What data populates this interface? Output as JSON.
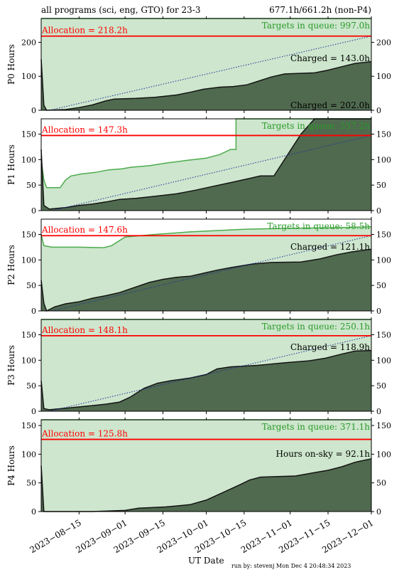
{
  "header": {
    "left": "all programs (sci, eng, GTO) for 23-3",
    "right": "677.1h/661.2h (non-P4)"
  },
  "footer": {
    "xlabel": "UT Date",
    "run_by": "run by: stevenj Mon Dec 4 20:48:34 2023"
  },
  "colors": {
    "allocation": "#ff0000",
    "queue_fill": "#cde6cd",
    "queue_line": "#4daa4d",
    "charged_fill": "#506a4f",
    "charged_line": "#141414",
    "pace_line": "#1f2f9a"
  },
  "chart_data": [
    {
      "type": "area",
      "ylabel": "P0 Hours",
      "ylim": [
        0,
        270
      ],
      "yticks": [
        0,
        100,
        200
      ],
      "allocation": 218.2,
      "allocation_label": "Allocation = 218.2h",
      "queue_label": "Targets in queue: 997.0h",
      "charged_label": "Charged = 143.0h",
      "extra_label": "Charged = 202.0h",
      "pace": [
        [
          "2023-08-04",
          0
        ],
        [
          "2023-12-01",
          218.2
        ]
      ],
      "queue": [
        [
          "2023-08-01",
          270
        ],
        [
          "2023-12-01",
          270
        ]
      ],
      "charged": [
        [
          "2023-08-01",
          150
        ],
        [
          "2023-08-02",
          15
        ],
        [
          "2023-08-03",
          0
        ],
        [
          "2023-08-10",
          2
        ],
        [
          "2023-08-15",
          8
        ],
        [
          "2023-08-20",
          16
        ],
        [
          "2023-08-25",
          28
        ],
        [
          "2023-08-28",
          33
        ],
        [
          "2023-09-05",
          35
        ],
        [
          "2023-09-12",
          38
        ],
        [
          "2023-09-20",
          45
        ],
        [
          "2023-09-25",
          53
        ],
        [
          "2023-09-30",
          62
        ],
        [
          "2023-10-06",
          68
        ],
        [
          "2023-10-11",
          70
        ],
        [
          "2023-10-16",
          75
        ],
        [
          "2023-10-20",
          85
        ],
        [
          "2023-10-25",
          98
        ],
        [
          "2023-10-30",
          107
        ],
        [
          "2023-11-10",
          110
        ],
        [
          "2023-11-15",
          118
        ],
        [
          "2023-11-20",
          128
        ],
        [
          "2023-11-25",
          138
        ],
        [
          "2023-12-01",
          143
        ]
      ]
    },
    {
      "type": "area",
      "ylabel": "P1 Hours",
      "ylim": [
        0,
        180
      ],
      "yticks": [
        0,
        50,
        100,
        150
      ],
      "allocation": 147.3,
      "allocation_label": "Allocation = 147.3h",
      "queue_label": "Targets in queue: 557.2h",
      "charged_label": "",
      "extra_label": "",
      "pace": [
        [
          "2023-08-05",
          0
        ],
        [
          "2023-12-01",
          147.3
        ]
      ],
      "queue": [
        [
          "2023-08-01",
          100
        ],
        [
          "2023-08-02",
          60
        ],
        [
          "2023-08-03",
          45
        ],
        [
          "2023-08-08",
          45
        ],
        [
          "2023-08-10",
          60
        ],
        [
          "2023-08-12",
          68
        ],
        [
          "2023-08-16",
          72
        ],
        [
          "2023-08-21",
          75
        ],
        [
          "2023-08-26",
          80
        ],
        [
          "2023-08-31",
          82
        ],
        [
          "2023-09-03",
          85
        ],
        [
          "2023-09-10",
          88
        ],
        [
          "2023-09-16",
          93
        ],
        [
          "2023-09-23",
          98
        ],
        [
          "2023-10-01",
          103
        ],
        [
          "2023-10-06",
          110
        ],
        [
          "2023-10-10",
          120
        ],
        [
          "2023-10-12",
          120
        ],
        [
          "2023-10-12",
          180
        ],
        [
          "2023-12-01",
          180
        ]
      ],
      "charged": [
        [
          "2023-08-01",
          120
        ],
        [
          "2023-08-02",
          10
        ],
        [
          "2023-08-04",
          3
        ],
        [
          "2023-08-10",
          6
        ],
        [
          "2023-08-15",
          10
        ],
        [
          "2023-08-20",
          13
        ],
        [
          "2023-08-25",
          17
        ],
        [
          "2023-08-30",
          22
        ],
        [
          "2023-09-05",
          24
        ],
        [
          "2023-09-12",
          28
        ],
        [
          "2023-09-20",
          33
        ],
        [
          "2023-09-27",
          40
        ],
        [
          "2023-10-03",
          47
        ],
        [
          "2023-10-10",
          55
        ],
        [
          "2023-10-16",
          62
        ],
        [
          "2023-10-21",
          68
        ],
        [
          "2023-10-26",
          68
        ],
        [
          "2023-11-05",
          150
        ],
        [
          "2023-11-10",
          180
        ],
        [
          "2023-12-01",
          180
        ]
      ]
    },
    {
      "type": "area",
      "ylabel": "P2 Hours",
      "ylim": [
        0,
        180
      ],
      "yticks": [
        0,
        50,
        100,
        150
      ],
      "allocation": 147.6,
      "allocation_label": "Allocation = 147.6h",
      "queue_label": "Targets in queue: 58.5h",
      "charged_label": "Charged = 121.1h",
      "extra_label": "",
      "pace": [
        [
          "2023-08-05",
          0
        ],
        [
          "2023-12-01",
          147.6
        ]
      ],
      "queue": [
        [
          "2023-08-01",
          150
        ],
        [
          "2023-08-02",
          128
        ],
        [
          "2023-08-05",
          125
        ],
        [
          "2023-08-15",
          125
        ],
        [
          "2023-08-24",
          124
        ],
        [
          "2023-08-27",
          128
        ],
        [
          "2023-09-01",
          145
        ],
        [
          "2023-09-12",
          150
        ],
        [
          "2023-09-25",
          155
        ],
        [
          "2023-10-15",
          160
        ],
        [
          "2023-10-31",
          162
        ],
        [
          "2023-11-15",
          163
        ],
        [
          "2023-12-01",
          165
        ]
      ],
      "charged": [
        [
          "2023-08-01",
          60
        ],
        [
          "2023-08-02",
          15
        ],
        [
          "2023-08-03",
          0
        ],
        [
          "2023-08-06",
          8
        ],
        [
          "2023-08-10",
          14
        ],
        [
          "2023-08-15",
          18
        ],
        [
          "2023-08-20",
          25
        ],
        [
          "2023-08-25",
          30
        ],
        [
          "2023-08-30",
          36
        ],
        [
          "2023-09-05",
          47
        ],
        [
          "2023-09-10",
          56
        ],
        [
          "2023-09-15",
          62
        ],
        [
          "2023-09-20",
          66
        ],
        [
          "2023-09-25",
          68
        ],
        [
          "2023-09-30",
          74
        ],
        [
          "2023-10-05",
          80
        ],
        [
          "2023-10-10",
          85
        ],
        [
          "2023-10-18",
          92
        ],
        [
          "2023-10-25",
          95
        ],
        [
          "2023-11-05",
          96
        ],
        [
          "2023-11-12",
          102
        ],
        [
          "2023-11-18",
          110
        ],
        [
          "2023-11-24",
          116
        ],
        [
          "2023-12-01",
          121
        ]
      ]
    },
    {
      "type": "area",
      "ylabel": "P3 Hours",
      "ylim": [
        0,
        180
      ],
      "yticks": [
        0,
        50,
        100,
        150
      ],
      "allocation": 148.1,
      "allocation_label": "Allocation = 148.1h",
      "queue_label": "Targets in queue: 250.1h",
      "charged_label": "Charged = 118.9h",
      "extra_label": "",
      "pace": [
        [
          "2023-08-04",
          0
        ],
        [
          "2023-12-01",
          148.1
        ]
      ],
      "queue": [
        [
          "2023-08-01",
          180
        ],
        [
          "2023-12-01",
          180
        ]
      ],
      "charged": [
        [
          "2023-08-01",
          60
        ],
        [
          "2023-08-02",
          5
        ],
        [
          "2023-08-04",
          3
        ],
        [
          "2023-08-10",
          6
        ],
        [
          "2023-08-18",
          10
        ],
        [
          "2023-08-25",
          14
        ],
        [
          "2023-08-30",
          18
        ],
        [
          "2023-09-03",
          28
        ],
        [
          "2023-09-08",
          45
        ],
        [
          "2023-09-13",
          55
        ],
        [
          "2023-09-18",
          60
        ],
        [
          "2023-09-25",
          65
        ],
        [
          "2023-10-01",
          72
        ],
        [
          "2023-10-05",
          83
        ],
        [
          "2023-10-10",
          87
        ],
        [
          "2023-10-20",
          90
        ],
        [
          "2023-10-30",
          95
        ],
        [
          "2023-11-08",
          99
        ],
        [
          "2023-11-14",
          104
        ],
        [
          "2023-11-20",
          112
        ],
        [
          "2023-11-25",
          118
        ],
        [
          "2023-12-01",
          119
        ]
      ]
    },
    {
      "type": "area",
      "ylabel": "P4 Hours",
      "ylim": [
        0,
        160
      ],
      "yticks": [
        0,
        50,
        100,
        150
      ],
      "allocation": 125.8,
      "allocation_label": "Allocation = 125.8h",
      "queue_label": "Targets in queue: 371.1h",
      "charged_label": "Hours on-sky = 92.1h",
      "extra_label": "",
      "pace": [],
      "queue": [
        [
          "2023-08-01",
          160
        ],
        [
          "2023-12-01",
          160
        ]
      ],
      "charged": [
        [
          "2023-08-01",
          80
        ],
        [
          "2023-08-02",
          0
        ],
        [
          "2023-08-20",
          0
        ],
        [
          "2023-09-01",
          2
        ],
        [
          "2023-09-06",
          6
        ],
        [
          "2023-09-16",
          8
        ],
        [
          "2023-09-25",
          12
        ],
        [
          "2023-10-01",
          20
        ],
        [
          "2023-10-08",
          35
        ],
        [
          "2023-10-14",
          48
        ],
        [
          "2023-10-17",
          55
        ],
        [
          "2023-10-21",
          60
        ],
        [
          "2023-11-03",
          62
        ],
        [
          "2023-11-10",
          68
        ],
        [
          "2023-11-15",
          72
        ],
        [
          "2023-11-20",
          78
        ],
        [
          "2023-11-25",
          86
        ],
        [
          "2023-12-01",
          92
        ]
      ]
    }
  ],
  "x_axis": {
    "range": [
      "2023-08-01",
      "2023-12-01"
    ],
    "ticks": [
      "2023-08-15",
      "2023-09-01",
      "2023-09-15",
      "2023-10-01",
      "2023-10-15",
      "2023-11-01",
      "2023-11-15",
      "2023-12-01"
    ]
  }
}
